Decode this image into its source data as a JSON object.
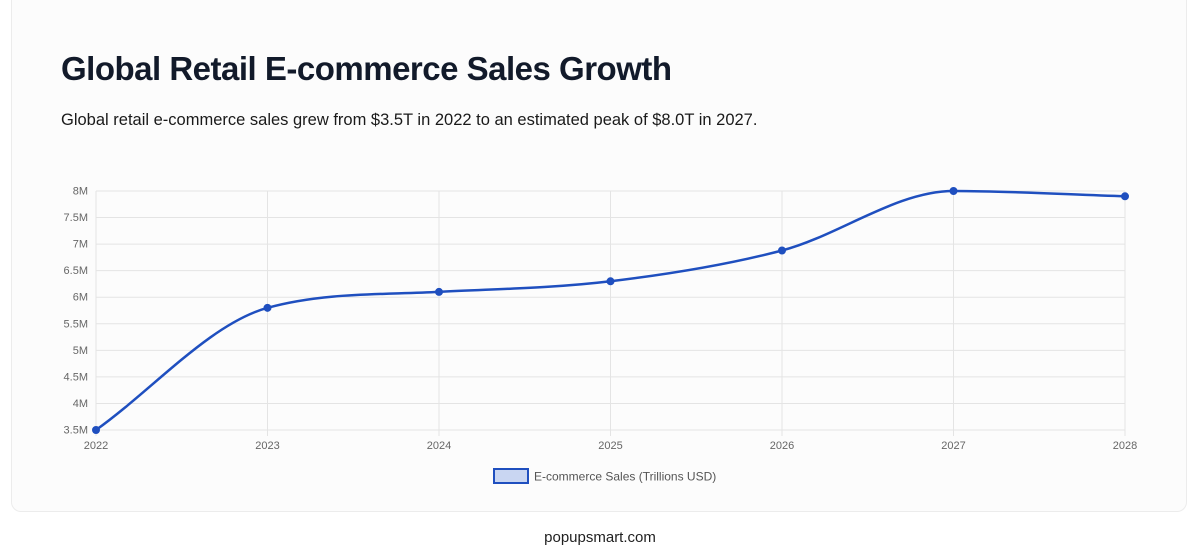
{
  "page": {
    "title": "Global Retail E-commerce Sales Growth",
    "subtitle": "Global retail e-commerce sales grew from $3.5T in 2022 to an estimated peak of $8.0T in 2027.",
    "footer": "popupsmart.com"
  },
  "colors": {
    "line": "#1f4fbf",
    "legend_fill": "#c9d6f2",
    "grid": "#e4e4e4",
    "tick_text": "#666666"
  },
  "chart_data": {
    "type": "line",
    "categories": [
      "2022",
      "2023",
      "2024",
      "2025",
      "2026",
      "2027",
      "2028"
    ],
    "series": [
      {
        "name": "E-commerce Sales (Trillions USD)",
        "values": [
          3.5,
          5.8,
          6.1,
          6.3,
          6.88,
          8.0,
          7.9
        ]
      }
    ],
    "ylim": [
      3.5,
      8
    ],
    "yticks": [
      "3.5M",
      "4M",
      "4.5M",
      "5M",
      "5.5M",
      "6M",
      "6.5M",
      "7M",
      "7.5M",
      "8M"
    ],
    "grid": true,
    "legend_position": "bottom"
  }
}
